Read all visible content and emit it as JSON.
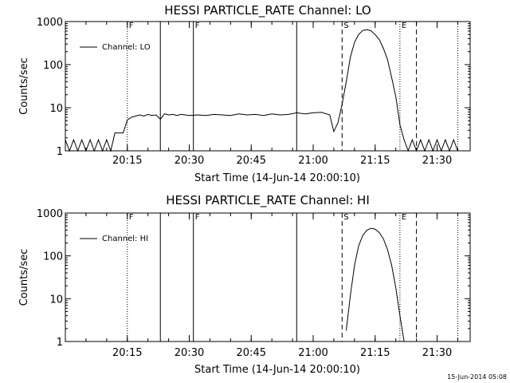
{
  "footer": {
    "timestamp": "15-Jun-2014 05:08"
  },
  "chart_data": [
    {
      "type": "line",
      "title": "HESSI PARTICLE_RATE Channel: LO",
      "xlabel": "Start Time (14-Jun-14 20:00:10)",
      "ylabel": "Counts/sec",
      "y_scale": "log",
      "ylim": [
        1,
        1000
      ],
      "xlim": [
        "20:00",
        "21:38"
      ],
      "x_tick_labels": [
        "20:15",
        "20:30",
        "20:45",
        "21:00",
        "21:15",
        "21:30"
      ],
      "y_tick_labels": [
        "1",
        "10",
        "100",
        "1000"
      ],
      "legend": {
        "position": "top-left",
        "entries": [
          "Channel: LO"
        ]
      },
      "markers": [
        {
          "time": "20:15",
          "style": "dotted",
          "label": "F"
        },
        {
          "time": "20:23",
          "style": "solid",
          "label": ""
        },
        {
          "time": "20:31",
          "style": "solid",
          "label": "F"
        },
        {
          "time": "20:56",
          "style": "solid",
          "label": ""
        },
        {
          "time": "21:07",
          "style": "dashed",
          "label": "S"
        },
        {
          "time": "21:21",
          "style": "dotted",
          "label": "E"
        },
        {
          "time": "21:25",
          "style": "dashed",
          "label": ""
        },
        {
          "time": "21:35",
          "style": "dotted",
          "label": ""
        }
      ],
      "series": [
        {
          "name": "Channel: LO",
          "x": [
            "20:00",
            "20:01",
            "20:02",
            "20:03",
            "20:04",
            "20:05",
            "20:06",
            "20:07",
            "20:08",
            "20:09",
            "20:10",
            "20:11",
            "20:12",
            "20:13",
            "20:14",
            "20:15",
            "20:16",
            "20:17",
            "20:18",
            "20:19",
            "20:20",
            "20:21",
            "20:22",
            "20:23",
            "20:24",
            "20:25",
            "20:26",
            "20:27",
            "20:28",
            "20:29",
            "20:30",
            "20:32",
            "20:34",
            "20:36",
            "20:38",
            "20:40",
            "20:42",
            "20:44",
            "20:46",
            "20:48",
            "20:50",
            "20:52",
            "20:54",
            "20:56",
            "20:58",
            "21:00",
            "21:02",
            "21:04",
            "21:05",
            "21:06",
            "21:07",
            "21:08",
            "21:09",
            "21:10",
            "21:11",
            "21:12",
            "21:13",
            "21:14",
            "21:15",
            "21:16",
            "21:17",
            "21:18",
            "21:19",
            "21:20",
            "21:21",
            "21:22",
            "21:23",
            "21:24",
            "21:25",
            "21:26",
            "21:27",
            "21:28",
            "21:29",
            "21:30",
            "21:31",
            "21:32",
            "21:33",
            "21:34",
            "21:35"
          ],
          "y": [
            1.8,
            1,
            1.8,
            1,
            1.8,
            1,
            1.8,
            1,
            1.8,
            1,
            1.8,
            1,
            2.6,
            2.6,
            2.6,
            5.2,
            6,
            6.4,
            6.8,
            6.4,
            7,
            6.6,
            6.8,
            5.4,
            7.2,
            6.8,
            7,
            6.6,
            7,
            6.8,
            6.6,
            6.8,
            6.6,
            7,
            6.8,
            6.6,
            7.2,
            6.8,
            7,
            6.6,
            7.2,
            6.8,
            7,
            7.6,
            7.2,
            7.6,
            7.8,
            6.8,
            2.8,
            4.5,
            12,
            40,
            150,
            330,
            500,
            620,
            650,
            610,
            500,
            380,
            240,
            130,
            50,
            18,
            4,
            1.8,
            1,
            1.8,
            1,
            1.8,
            1,
            1.8,
            1,
            1.8,
            1,
            1.8,
            1,
            1.8,
            1
          ]
        }
      ]
    },
    {
      "type": "line",
      "title": "HESSI PARTICLE_RATE Channel: HI",
      "xlabel": "Start Time (14-Jun-14 20:00:10)",
      "ylabel": "Counts/sec",
      "y_scale": "log",
      "ylim": [
        1,
        1000
      ],
      "xlim": [
        "20:00",
        "21:38"
      ],
      "x_tick_labels": [
        "20:15",
        "20:30",
        "20:45",
        "21:00",
        "21:15",
        "21:30"
      ],
      "y_tick_labels": [
        "1",
        "10",
        "100",
        "1000"
      ],
      "legend": {
        "position": "top-left",
        "entries": [
          "Channel: HI"
        ]
      },
      "markers": [
        {
          "time": "20:15",
          "style": "dotted",
          "label": "F"
        },
        {
          "time": "20:23",
          "style": "solid",
          "label": ""
        },
        {
          "time": "20:31",
          "style": "solid",
          "label": "F"
        },
        {
          "time": "20:56",
          "style": "solid",
          "label": ""
        },
        {
          "time": "21:07",
          "style": "dashed",
          "label": "S"
        },
        {
          "time": "21:21",
          "style": "dotted",
          "label": "E"
        },
        {
          "time": "21:25",
          "style": "dashed",
          "label": ""
        },
        {
          "time": "21:35",
          "style": "dotted",
          "label": ""
        }
      ],
      "series": [
        {
          "name": "Channel: HI",
          "x": [
            "21:08",
            "21:09",
            "21:10",
            "21:11",
            "21:12",
            "21:13",
            "21:14",
            "21:15",
            "21:16",
            "21:17",
            "21:18",
            "21:19",
            "21:20",
            "21:21",
            "21:22"
          ],
          "y": [
            1.8,
            12,
            60,
            170,
            300,
            400,
            440,
            420,
            350,
            250,
            140,
            60,
            18,
            4,
            1
          ]
        }
      ]
    }
  ]
}
